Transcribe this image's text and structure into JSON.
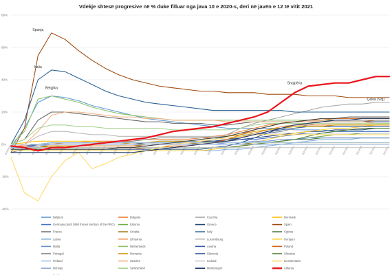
{
  "chart_data": {
    "type": "line",
    "title": "Vdekje shtesë progresive në % duke filluar nga java 10 e 2020-s, deri në javën e 12 të vitit 2021",
    "y_ticks": [
      "80%",
      "60%",
      "40%",
      "20%",
      "0%",
      "-20%",
      "-40%"
    ],
    "ylim": [
      -40,
      80
    ],
    "y_tick_values": [
      80,
      60,
      40,
      20,
      0,
      -20,
      -40
    ],
    "x": [
      "2020W10",
      "2020W12",
      "2020W14",
      "2020W16",
      "2020W18",
      "2020W20",
      "2020W22",
      "2020W24",
      "2020W26",
      "2020W28",
      "2020W30",
      "2020W32",
      "2020W34",
      "2020W36",
      "2020W38",
      "2020W40",
      "2020W42",
      "2020W44",
      "2020W46",
      "2020W48",
      "2020W50",
      "2020W52",
      "2021W01",
      "2021W03",
      "2021W05",
      "2021W07",
      "2021W09",
      "2021W11",
      "2021W12"
    ],
    "annotations": [
      {
        "text": "Spanja",
        "series": "Spain",
        "x": "2020W14",
        "y": 69
      },
      {
        "text": "Italia",
        "series": "Italy",
        "x": "2020W14",
        "y": 46
      },
      {
        "text": "Belgjika",
        "series": "Belgium",
        "x": "2020W16",
        "y": 33
      },
      {
        "text": "Shqipëria",
        "series": "Albania",
        "x": "2020W52",
        "y": 36
      },
      {
        "text": "Çekia (Vdj)",
        "series": "Czechia",
        "x": "2021W11",
        "y": 26
      },
      {
        "text": "",
        "series": "Albania",
        "x": "2021W12",
        "y": 42
      }
    ],
    "series": [
      {
        "name": "Belgium",
        "color": "#5b9bd5",
        "values": [
          -2,
          10,
          26,
          30,
          29,
          27,
          24,
          22,
          20,
          18,
          16,
          15,
          14,
          13,
          12,
          11,
          10,
          10,
          10,
          10,
          10,
          9,
          9,
          9,
          8,
          8,
          8,
          8,
          8
        ]
      },
      {
        "name": "Bulgaria",
        "color": "#ed7d31",
        "values": [
          -1,
          -1,
          0,
          0,
          1,
          1,
          2,
          2,
          2,
          2,
          3,
          3,
          3,
          3,
          4,
          5,
          6,
          8,
          10,
          12,
          13,
          14,
          14,
          14,
          14,
          14,
          14,
          15,
          15
        ]
      },
      {
        "name": "Czechia",
        "color": "#a5a5a5",
        "values": [
          -3,
          -3,
          -2,
          -2,
          -1,
          -1,
          -1,
          -1,
          -1,
          -1,
          -1,
          0,
          0,
          0,
          1,
          3,
          6,
          10,
          13,
          15,
          17,
          19,
          21,
          23,
          24,
          25,
          25,
          26,
          26
        ]
      },
      {
        "name": "Denmark",
        "color": "#ffc000",
        "values": [
          0,
          1,
          2,
          2,
          2,
          2,
          2,
          1,
          1,
          1,
          1,
          1,
          1,
          1,
          1,
          1,
          1,
          1,
          1,
          1,
          1,
          1,
          1,
          1,
          1,
          1,
          1,
          1,
          1
        ]
      },
      {
        "name": "Germany (until 1990 former territory of the FRG)",
        "color": "#4472c4",
        "values": [
          -2,
          -1,
          0,
          1,
          1,
          1,
          1,
          1,
          1,
          1,
          1,
          2,
          2,
          2,
          2,
          2,
          2,
          3,
          3,
          4,
          5,
          6,
          7,
          7,
          8,
          8,
          8,
          8,
          8
        ]
      },
      {
        "name": "Estonia",
        "color": "#70ad47",
        "values": [
          -3,
          -3,
          -3,
          -3,
          -3,
          -3,
          -3,
          -3,
          -3,
          -3,
          -3,
          -3,
          -3,
          -3,
          -3,
          -2,
          -2,
          -1,
          0,
          1,
          2,
          3,
          4,
          5,
          6,
          6,
          7,
          7,
          7
        ]
      },
      {
        "name": "Greece",
        "color": "#264478",
        "values": [
          0,
          0,
          0,
          0,
          0,
          0,
          0,
          0,
          0,
          0,
          1,
          1,
          1,
          1,
          1,
          2,
          2,
          3,
          4,
          5,
          6,
          7,
          8,
          8,
          9,
          9,
          9,
          10,
          10
        ]
      },
      {
        "name": "Spain",
        "color": "#9e480e",
        "values": [
          -5,
          10,
          55,
          69,
          65,
          58,
          52,
          47,
          43,
          40,
          38,
          36,
          35,
          34,
          33,
          33,
          32,
          32,
          32,
          31,
          31,
          31,
          30,
          30,
          30,
          29,
          29,
          29,
          29
        ]
      },
      {
        "name": "France",
        "color": "#636363",
        "values": [
          0,
          3,
          15,
          20,
          20,
          19,
          18,
          17,
          16,
          15,
          14,
          14,
          13,
          13,
          13,
          12,
          12,
          13,
          14,
          14,
          14,
          14,
          14,
          14,
          14,
          14,
          14,
          14,
          14
        ]
      },
      {
        "name": "Croatia",
        "color": "#997300",
        "values": [
          -2,
          -2,
          -2,
          -1,
          -1,
          -1,
          -1,
          -1,
          -1,
          -1,
          0,
          0,
          0,
          0,
          1,
          2,
          3,
          5,
          7,
          9,
          11,
          12,
          12,
          12,
          12,
          12,
          12,
          12,
          12
        ]
      },
      {
        "name": "Italy",
        "color": "#255e91",
        "values": [
          0,
          15,
          40,
          46,
          45,
          41,
          37,
          33,
          30,
          28,
          26,
          25,
          24,
          23,
          22,
          21,
          21,
          21,
          21,
          21,
          21,
          20,
          20,
          20,
          20,
          20,
          20,
          20,
          20
        ]
      },
      {
        "name": "Cyprus",
        "color": "#43682b",
        "values": [
          0,
          0,
          0,
          0,
          0,
          0,
          0,
          0,
          0,
          0,
          0,
          0,
          0,
          0,
          0,
          0,
          0,
          0,
          1,
          1,
          2,
          3,
          3,
          4,
          4,
          4,
          4,
          4,
          4
        ]
      },
      {
        "name": "Latvia",
        "color": "#7cafdd",
        "values": [
          -4,
          -4,
          -4,
          -4,
          -4,
          -4,
          -4,
          -4,
          -4,
          -4,
          -4,
          -4,
          -4,
          -4,
          -4,
          -4,
          -3,
          -3,
          -2,
          -1,
          0,
          1,
          2,
          3,
          3,
          3,
          4,
          4,
          4
        ]
      },
      {
        "name": "Lithuania",
        "color": "#f1975a",
        "values": [
          -1,
          -1,
          -1,
          -1,
          -1,
          -1,
          -1,
          -1,
          -1,
          -1,
          -1,
          0,
          0,
          0,
          0,
          1,
          2,
          4,
          7,
          9,
          11,
          12,
          12,
          12,
          12,
          12,
          12,
          12,
          12
        ]
      },
      {
        "name": "Luxembourg",
        "color": "#b7b7b7",
        "values": [
          -2,
          0,
          5,
          8,
          8,
          7,
          6,
          6,
          5,
          5,
          5,
          5,
          5,
          5,
          5,
          5,
          5,
          6,
          6,
          7,
          7,
          7,
          7,
          7,
          7,
          7,
          7,
          7,
          7
        ]
      },
      {
        "name": "Hungary",
        "color": "#ffcd33",
        "values": [
          -4,
          -4,
          -4,
          -4,
          -4,
          -4,
          -4,
          -4,
          -4,
          -4,
          -4,
          -4,
          -4,
          -4,
          -4,
          -3,
          -2,
          -1,
          1,
          3,
          5,
          7,
          8,
          9,
          10,
          10,
          11,
          12,
          12
        ]
      },
      {
        "name": "Malta",
        "color": "#698ed0",
        "values": [
          0,
          0,
          0,
          0,
          0,
          0,
          0,
          0,
          0,
          0,
          0,
          0,
          0,
          0,
          0,
          0,
          1,
          1,
          2,
          2,
          3,
          3,
          4,
          4,
          4,
          4,
          4,
          4,
          4
        ]
      },
      {
        "name": "Netherlands",
        "color": "#8cc168",
        "values": [
          0,
          8,
          28,
          30,
          28,
          26,
          23,
          21,
          19,
          18,
          17,
          16,
          15,
          15,
          15,
          15,
          15,
          15,
          15,
          15,
          15,
          15,
          15,
          15,
          15,
          15,
          15,
          15,
          15
        ]
      },
      {
        "name": "Austria",
        "color": "#335aa1",
        "values": [
          -2,
          -2,
          0,
          1,
          1,
          1,
          1,
          1,
          1,
          1,
          1,
          1,
          1,
          1,
          2,
          2,
          3,
          4,
          6,
          8,
          9,
          10,
          11,
          11,
          11,
          11,
          11,
          11,
          11
        ]
      },
      {
        "name": "Poland",
        "color": "#d26012",
        "values": [
          -3,
          -3,
          -3,
          -3,
          -3,
          -3,
          -3,
          -3,
          -3,
          -3,
          -2,
          -2,
          -1,
          -1,
          0,
          1,
          3,
          6,
          9,
          11,
          13,
          14,
          15,
          15,
          16,
          16,
          16,
          16,
          16
        ]
      },
      {
        "name": "Portugal",
        "color": "#848484",
        "values": [
          -5,
          -3,
          0,
          1,
          1,
          1,
          1,
          1,
          1,
          2,
          3,
          4,
          4,
          4,
          4,
          4,
          4,
          5,
          6,
          7,
          8,
          10,
          12,
          14,
          15,
          15,
          15,
          15,
          15
        ]
      },
      {
        "name": "Romania",
        "color": "#cc9a00",
        "values": [
          -2,
          -2,
          -1,
          -1,
          -1,
          -1,
          0,
          0,
          0,
          1,
          1,
          2,
          2,
          2,
          3,
          4,
          5,
          6,
          8,
          9,
          10,
          11,
          11,
          11,
          12,
          12,
          12,
          12,
          12
        ]
      },
      {
        "name": "Slovenia",
        "color": "#2f5597",
        "values": [
          -3,
          -3,
          -3,
          -3,
          -3,
          -3,
          -3,
          -3,
          -3,
          -3,
          -3,
          -3,
          -3,
          -3,
          -3,
          -2,
          -1,
          1,
          4,
          7,
          10,
          12,
          13,
          14,
          14,
          14,
          14,
          14,
          14
        ]
      },
      {
        "name": "Slovakia",
        "color": "#548235",
        "values": [
          -2,
          -2,
          -2,
          -2,
          -2,
          -2,
          -2,
          -2,
          -2,
          -2,
          -2,
          -2,
          -2,
          -2,
          -2,
          -2,
          -2,
          -1,
          0,
          1,
          2,
          3,
          5,
          7,
          8,
          9,
          10,
          10,
          10
        ]
      },
      {
        "name": "Finland",
        "color": "#9dc3e6",
        "values": [
          0,
          0,
          0,
          1,
          1,
          1,
          1,
          1,
          1,
          1,
          1,
          1,
          1,
          1,
          1,
          1,
          1,
          1,
          1,
          1,
          1,
          1,
          1,
          1,
          1,
          1,
          1,
          1,
          1
        ]
      },
      {
        "name": "Sweden",
        "color": "#f4b183",
        "values": [
          -2,
          0,
          8,
          18,
          20,
          20,
          19,
          18,
          17,
          17,
          16,
          16,
          15,
          15,
          15,
          15,
          14,
          14,
          14,
          14,
          14,
          14,
          14,
          14,
          14,
          14,
          14,
          13,
          13
        ]
      },
      {
        "name": "Iceland",
        "color": "#c9c9c9",
        "values": [
          -2,
          -2,
          -2,
          -2,
          -2,
          -2,
          -2,
          -2,
          -2,
          -2,
          -2,
          -2,
          -2,
          -2,
          -2,
          -2,
          -2,
          -2,
          -2,
          -2,
          -2,
          -2,
          -2,
          -2,
          -2,
          -2,
          -2,
          -2,
          -2
        ]
      },
      {
        "name": "Liechtenstein",
        "color": "#ffd966",
        "values": [
          -8,
          -30,
          -35,
          -20,
          -10,
          -5,
          -15,
          -12,
          -8,
          -6,
          -4,
          -2,
          0,
          1,
          2,
          3,
          4,
          5,
          6,
          6,
          6,
          6,
          6,
          6,
          6,
          6,
          6,
          6,
          6
        ]
      },
      {
        "name": "Norway",
        "color": "#8faadc",
        "values": [
          -2,
          -2,
          -1,
          0,
          0,
          0,
          0,
          0,
          0,
          0,
          0,
          0,
          0,
          0,
          0,
          0,
          0,
          0,
          0,
          0,
          0,
          0,
          0,
          0,
          0,
          0,
          0,
          0,
          0
        ]
      },
      {
        "name": "Switzerland",
        "color": "#a9d18e",
        "values": [
          0,
          3,
          10,
          12,
          12,
          11,
          11,
          10,
          10,
          10,
          10,
          10,
          9,
          9,
          9,
          9,
          9,
          10,
          12,
          13,
          13,
          13,
          13,
          13,
          13,
          13,
          13,
          13,
          13
        ]
      },
      {
        "name": "Montenegro",
        "color": "#1f3864",
        "values": [
          -5,
          -5,
          -5,
          -5,
          -5,
          -5,
          -5,
          -5,
          -5,
          -5,
          -4,
          -3,
          -2,
          -1,
          0,
          1,
          2,
          4,
          6,
          8,
          10,
          12,
          13,
          14,
          15,
          15,
          16,
          16,
          16
        ]
      },
      {
        "name": "Albania",
        "color": "#e8141c",
        "values": [
          -1,
          -2,
          -4,
          -2,
          -2,
          -1,
          0,
          1,
          2,
          3,
          4,
          6,
          8,
          9,
          10,
          11,
          13,
          15,
          17,
          20,
          26,
          32,
          36,
          37,
          38,
          38,
          40,
          42,
          42
        ]
      },
      {
        "name": "Serbia",
        "color": "#404040",
        "values": [
          -3,
          -3,
          -3,
          -3,
          -3,
          -3,
          -3,
          -3,
          -2,
          -2,
          -1,
          0,
          1,
          2,
          3,
          4,
          5,
          7,
          9,
          11,
          13,
          14,
          15,
          16,
          16,
          17,
          17,
          17,
          17
        ]
      }
    ]
  }
}
